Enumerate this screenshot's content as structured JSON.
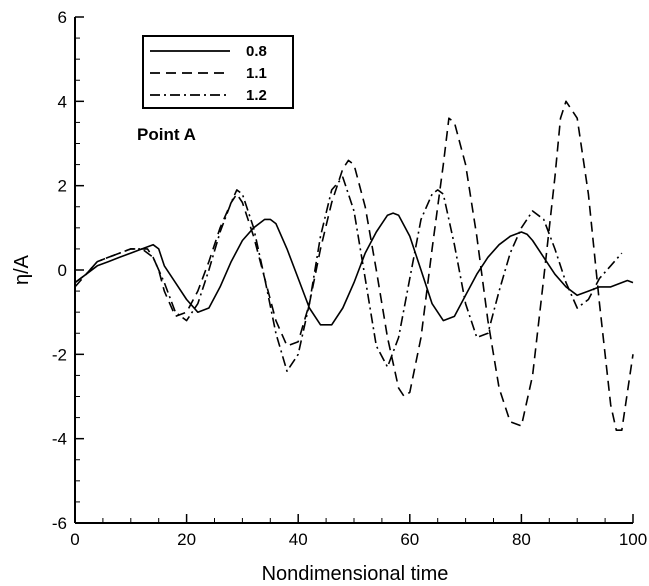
{
  "chart_data": {
    "type": "line",
    "title": "",
    "xlabel": "Nondimensional time",
    "ylabel": "η/A",
    "xlim": [
      0,
      100
    ],
    "ylim": [
      -6,
      6
    ],
    "xticks": [
      0,
      20,
      40,
      60,
      80,
      100
    ],
    "yticks": [
      -6,
      -4,
      -2,
      0,
      2,
      4,
      6
    ],
    "grid": false,
    "legend_position": "top-left",
    "annotations": [
      {
        "text": "Point A"
      }
    ],
    "series": [
      {
        "name": "0.8",
        "style": "solid",
        "color": "#000000",
        "x": [
          0,
          2,
          4,
          6,
          8,
          10,
          12,
          14,
          15,
          16,
          18,
          20,
          22,
          24,
          26,
          28,
          30,
          32,
          34,
          35,
          36,
          38,
          40,
          42,
          44,
          46,
          48,
          50,
          52,
          54,
          56,
          57,
          58,
          60,
          62,
          64,
          66,
          68,
          70,
          72,
          74,
          76,
          78,
          80,
          81,
          82,
          84,
          86,
          88,
          90,
          92,
          94,
          96,
          98,
          99,
          100
        ],
        "y": [
          -0.3,
          -0.1,
          0.1,
          0.2,
          0.3,
          0.4,
          0.5,
          0.6,
          0.5,
          0.1,
          -0.3,
          -0.7,
          -1.0,
          -0.9,
          -0.4,
          0.2,
          0.7,
          1.0,
          1.2,
          1.2,
          1.1,
          0.5,
          -0.2,
          -0.9,
          -1.3,
          -1.3,
          -0.9,
          -0.3,
          0.4,
          0.9,
          1.3,
          1.35,
          1.3,
          0.8,
          0.0,
          -0.8,
          -1.2,
          -1.1,
          -0.6,
          -0.1,
          0.3,
          0.6,
          0.8,
          0.9,
          0.85,
          0.7,
          0.3,
          -0.1,
          -0.4,
          -0.6,
          -0.5,
          -0.4,
          -0.4,
          -0.3,
          -0.25,
          -0.3
        ]
      },
      {
        "name": "1.1",
        "style": "dashed",
        "color": "#000000",
        "x": [
          0,
          2,
          4,
          6,
          8,
          10,
          12,
          13,
          14,
          15,
          16,
          18,
          20,
          22,
          24,
          26,
          28,
          29,
          30,
          32,
          34,
          36,
          38,
          40,
          42,
          44,
          46,
          48,
          49,
          50,
          52,
          54,
          56,
          58,
          59,
          60,
          62,
          64,
          66,
          67,
          68,
          70,
          72,
          74,
          76,
          78,
          80,
          82,
          84,
          86,
          87,
          88,
          90,
          92,
          94,
          96,
          97,
          98,
          100
        ],
        "y": [
          -0.4,
          -0.1,
          0.2,
          0.3,
          0.4,
          0.5,
          0.5,
          0.5,
          0.3,
          0.0,
          -0.5,
          -1.1,
          -1.0,
          -0.5,
          0.2,
          1.0,
          1.6,
          1.8,
          1.6,
          0.8,
          -0.2,
          -1.2,
          -1.8,
          -1.7,
          -0.8,
          0.5,
          1.6,
          2.4,
          2.6,
          2.5,
          1.5,
          0.0,
          -1.6,
          -2.8,
          -3.0,
          -2.9,
          -1.6,
          0.5,
          2.5,
          3.6,
          3.5,
          2.5,
          0.8,
          -1.2,
          -2.8,
          -3.6,
          -3.7,
          -2.5,
          -0.2,
          2.2,
          3.6,
          4.0,
          3.6,
          1.8,
          -0.8,
          -3.2,
          -3.8,
          -3.8,
          -2.0
        ]
      },
      {
        "name": "1.2",
        "style": "dashdot",
        "color": "#000000",
        "x": [
          0,
          2,
          4,
          6,
          8,
          10,
          12,
          14,
          16,
          18,
          20,
          22,
          24,
          26,
          28,
          29,
          30,
          32,
          34,
          36,
          38,
          40,
          42,
          44,
          46,
          48,
          50,
          52,
          54,
          56,
          58,
          60,
          62,
          64,
          65,
          66,
          68,
          70,
          72,
          74,
          76,
          78,
          80,
          82,
          84,
          86,
          88,
          90,
          92,
          94,
          96,
          98
        ],
        "y": [
          -0.3,
          -0.1,
          0.2,
          0.3,
          0.4,
          0.5,
          0.5,
          0.3,
          -0.3,
          -1.0,
          -1.2,
          -0.8,
          0.0,
          0.9,
          1.6,
          1.9,
          1.8,
          1.0,
          -0.2,
          -1.5,
          -2.4,
          -2.0,
          -0.8,
          0.8,
          1.9,
          2.2,
          1.4,
          -0.2,
          -1.8,
          -2.3,
          -1.6,
          -0.2,
          1.2,
          1.8,
          1.9,
          1.8,
          0.6,
          -0.8,
          -1.6,
          -1.5,
          -0.5,
          0.4,
          1.0,
          1.4,
          1.2,
          0.5,
          -0.3,
          -0.9,
          -0.7,
          -0.2,
          0.1,
          0.4
        ]
      }
    ]
  }
}
